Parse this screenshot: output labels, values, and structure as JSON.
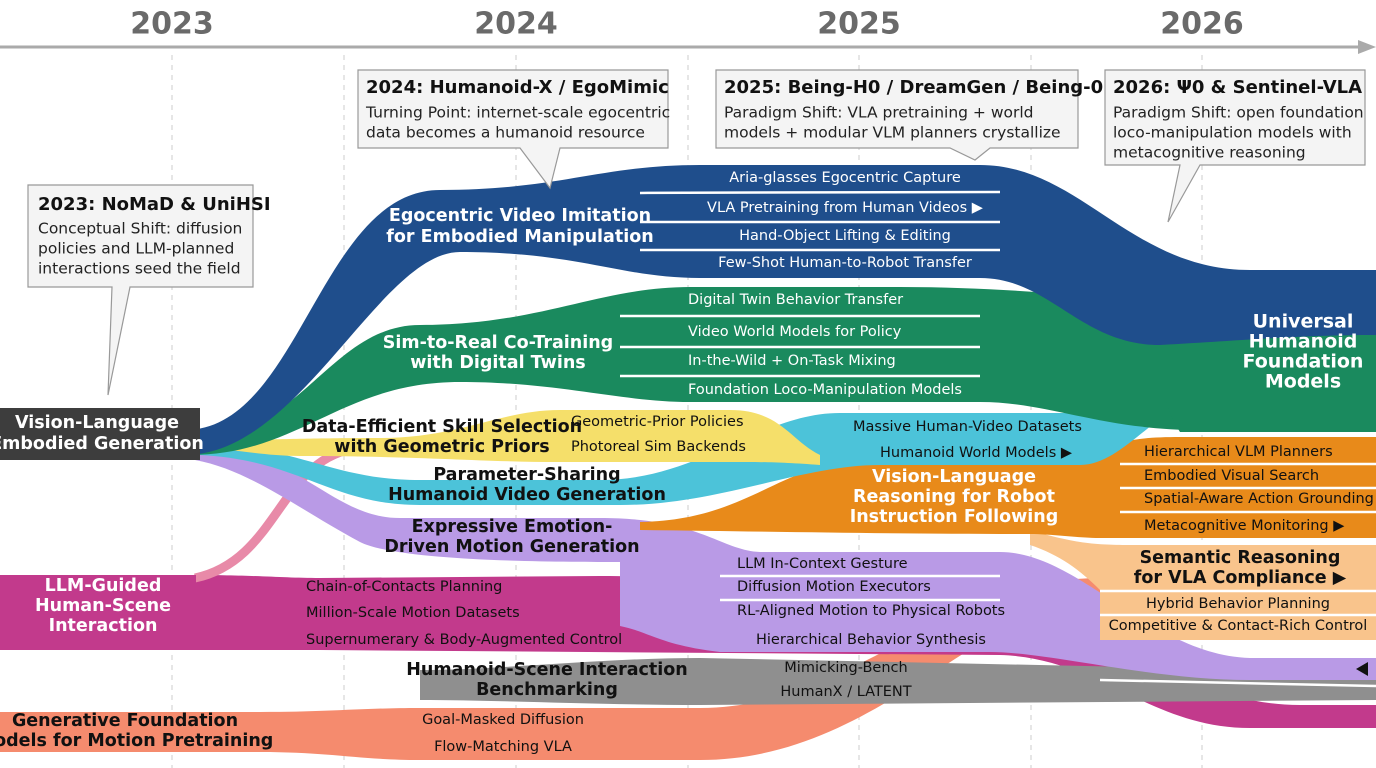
{
  "timeline": {
    "years": [
      "2023",
      "2024",
      "2025",
      "2026"
    ]
  },
  "callouts": [
    {
      "title": "2023: NoMaD & UniHSI",
      "body": [
        "Conceptual Shift: diffusion",
        "policies and LLM-planned",
        "interactions seed the field"
      ]
    },
    {
      "title": "2024: Humanoid-X / EgoMimic",
      "body": [
        "Turning Point: internet-scale egocentric",
        "data becomes a humanoid resource"
      ]
    },
    {
      "title": "2025: Being-H0 / DreamGen / Being-0",
      "body": [
        "Paradigm Shift: VLA pretraining + world",
        "models + modular VLM planners crystallize"
      ]
    },
    {
      "title": "2026: Ψ0 & Sentinel-VLA",
      "body": [
        "Paradigm Shift: open foundation",
        "loco-manipulation models with",
        "metacognitive reasoning"
      ]
    }
  ],
  "roots": [
    {
      "label": [
        "Vision-Language",
        "Embodied Generation"
      ]
    },
    {
      "label": [
        "LLM-Guided",
        "Human-Scene",
        "Interaction"
      ],
      "items": [
        "Chain-of-Contacts Planning",
        "Million-Scale Motion Datasets",
        "Supernumerary & Body-Augmented Control"
      ]
    },
    {
      "label": [
        "Generative Foundation",
        "Models for Motion Pretraining"
      ],
      "items": [
        "Goal-Masked Diffusion",
        "Flow-Matching VLA"
      ]
    }
  ],
  "branches": [
    {
      "label": [
        "Egocentric Video Imitation",
        "for Embodied Manipulation"
      ],
      "items": [
        "Aria-glasses Egocentric Capture",
        "VLA Pretraining from Human Videos ▶",
        "Hand-Object Lifting & Editing",
        "Few-Shot Human-to-Robot Transfer"
      ]
    },
    {
      "label": [
        "Sim-to-Real Co-Training",
        "with Digital Twins"
      ],
      "items": [
        "Digital Twin Behavior Transfer",
        "Video World Models for Policy",
        "In-the-Wild + On-Task Mixing",
        "Foundation Loco-Manipulation Models"
      ]
    },
    {
      "label": [
        "Data-Efficient Skill Selection",
        "with Geometric Priors"
      ],
      "items": [
        "Geometric-Prior Policies",
        "Photoreal Sim Backends"
      ]
    },
    {
      "label": [
        "Parameter-Sharing",
        "Humanoid Video Generation"
      ],
      "items": [
        "Massive Human-Video Datasets",
        "Humanoid World Models ▶"
      ]
    },
    {
      "label": [
        "Expressive Emotion-",
        "Driven Motion Generation"
      ],
      "items": [
        "LLM In-Context Gesture",
        "Diffusion Motion Executors",
        "RL-Aligned Motion to Physical Robots",
        "Hierarchical Behavior Synthesis"
      ]
    },
    {
      "label": [
        "Vision-Language",
        "Reasoning for Robot",
        "Instruction Following"
      ],
      "items": [
        "Hierarchical VLM Planners",
        "Embodied Visual Search",
        "Spatial-Aware Action Grounding",
        "Metacognitive Monitoring ▶"
      ]
    },
    {
      "label": [
        "Semantic Reasoning",
        "for VLA Compliance ▶"
      ],
      "items": [
        "Hybrid Behavior Planning",
        "Competitive & Contact-Rich Control"
      ]
    },
    {
      "label": [
        "Humanoid-Scene Interaction",
        "Benchmarking"
      ],
      "items": [
        "Mimicking-Bench",
        "HumanX / LATENT"
      ]
    }
  ],
  "outcome": {
    "label": [
      "Universal",
      "Humanoid",
      "Foundation",
      "Models"
    ]
  }
}
